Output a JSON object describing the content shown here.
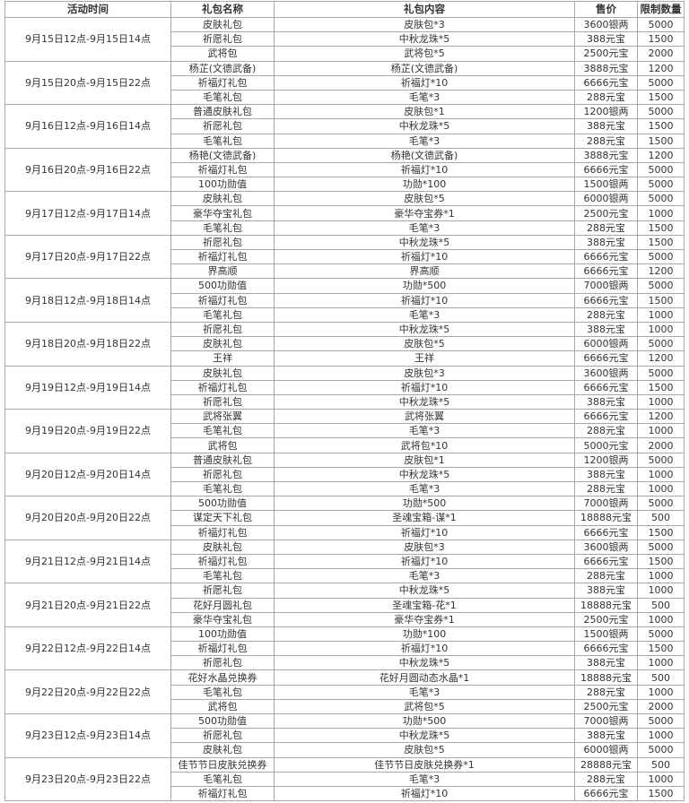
{
  "headers": [
    "活动时间",
    "礼包名称",
    "礼包内容",
    "售价",
    "限制数量"
  ],
  "groups": [
    {
      "time": "9月15日12点-9月15日14点",
      "rows": [
        [
          "皮肤礼包",
          "皮肤包*3",
          "3600银两",
          "5000"
        ],
        [
          "祈愿礼包",
          "中秋龙珠*5",
          "388元宝",
          "1500"
        ],
        [
          "武将包",
          "武将包*5",
          "2500元宝",
          "2000"
        ]
      ]
    },
    {
      "time": "9月15日20点-9月15日22点",
      "rows": [
        [
          "杨芷(文德武备)",
          "杨芷(文德武备)",
          "3888元宝",
          "1200"
        ],
        [
          "祈福灯礼包",
          "祈福灯*10",
          "6666元宝",
          "5000"
        ],
        [
          "毛笔礼包",
          "毛笔*3",
          "288元宝",
          "1500"
        ]
      ]
    },
    {
      "time": "9月16日12点-9月16日14点",
      "rows": [
        [
          "普通皮肤礼包",
          "皮肤包*1",
          "1200银两",
          "5000"
        ],
        [
          "祈愿礼包",
          "中秋龙珠*5",
          "388元宝",
          "1500"
        ],
        [
          "毛笔礼包",
          "毛笔*3",
          "288元宝",
          "1500"
        ]
      ]
    },
    {
      "time": "9月16日20点-9月16日22点",
      "rows": [
        [
          "杨艳(文德武备)",
          "杨艳(文德武备)",
          "3888元宝",
          "1200"
        ],
        [
          "祈福灯礼包",
          "祈福灯*10",
          "6666元宝",
          "5000"
        ],
        [
          "100功勋值",
          "功勋*100",
          "1500银两",
          "5000"
        ]
      ]
    },
    {
      "time": "9月17日12点-9月17日14点",
      "rows": [
        [
          "皮肤礼包",
          "皮肤包*5",
          "6000银两",
          "5000"
        ],
        [
          "豪华夺宝礼包",
          "豪华夺宝券*1",
          "2500元宝",
          "1000"
        ],
        [
          "毛笔礼包",
          "毛笔*3",
          "288元宝",
          "1500"
        ]
      ]
    },
    {
      "time": "9月17日20点-9月17日22点",
      "rows": [
        [
          "祈愿礼包",
          "中秋龙珠*5",
          "388元宝",
          "1500"
        ],
        [
          "祈福灯礼包",
          "祈福灯*10",
          "6666元宝",
          "5000"
        ],
        [
          "界高顺",
          "界高顺",
          "6666元宝",
          "1200"
        ]
      ]
    },
    {
      "time": "9月18日12点-9月18日14点",
      "rows": [
        [
          "500功勋值",
          "功勋*500",
          "7000银两",
          "5000"
        ],
        [
          "祈福灯礼包",
          "祈福灯*10",
          "6666元宝",
          "1500"
        ],
        [
          "毛笔礼包",
          "毛笔*3",
          "288元宝",
          "1000"
        ]
      ]
    },
    {
      "time": "9月18日20点-9月18日22点",
      "rows": [
        [
          "祈愿礼包",
          "中秋龙珠*5",
          "388元宝",
          "1000"
        ],
        [
          "皮肤礼包",
          "皮肤包*5",
          "6000银两",
          "5000"
        ],
        [
          "王祥",
          "王祥",
          "6666元宝",
          "1200"
        ]
      ]
    },
    {
      "time": "9月19日12点-9月19日14点",
      "rows": [
        [
          "皮肤礼包",
          "皮肤包*3",
          "3600银两",
          "5000"
        ],
        [
          "祈福灯礼包",
          "祈福灯*10",
          "6666元宝",
          "1500"
        ],
        [
          "祈愿礼包",
          "中秋龙珠*5",
          "388元宝",
          "1000"
        ]
      ]
    },
    {
      "time": "9月19日20点-9月19日22点",
      "rows": [
        [
          "武将张翼",
          "武将张翼",
          "6666元宝",
          "1200"
        ],
        [
          "毛笔礼包",
          "毛笔*3",
          "288元宝",
          "1000"
        ],
        [
          "武将包",
          "武将包*10",
          "5000元宝",
          "2000"
        ]
      ]
    },
    {
      "time": "9月20日12点-9月20日14点",
      "rows": [
        [
          "普通皮肤礼包",
          "皮肤包*1",
          "1200银两",
          "5000"
        ],
        [
          "祈愿礼包",
          "中秋龙珠*5",
          "388元宝",
          "1000"
        ],
        [
          "毛笔礼包",
          "毛笔*3",
          "288元宝",
          "1000"
        ]
      ]
    },
    {
      "time": "9月20日20点-9月20日22点",
      "rows": [
        [
          "500功勋值",
          "功勋*500",
          "7000银两",
          "5000"
        ],
        [
          "谋定天下礼包",
          "圣魂宝箱-谋*1",
          "18888元宝",
          "500"
        ],
        [
          "祈福灯礼包",
          "祈福灯*10",
          "6666元宝",
          "1500"
        ]
      ]
    },
    {
      "time": "9月21日12点-9月21日14点",
      "rows": [
        [
          "皮肤礼包",
          "皮肤包*3",
          "3600银两",
          "5000"
        ],
        [
          "祈福灯礼包",
          "祈福灯*10",
          "6666元宝",
          "1500"
        ],
        [
          "毛笔礼包",
          "毛笔*3",
          "288元宝",
          "1000"
        ]
      ]
    },
    {
      "time": "9月21日20点-9月21日22点",
      "rows": [
        [
          "祈愿礼包",
          "中秋龙珠*5",
          "388元宝",
          "1000"
        ],
        [
          "花好月圆礼包",
          "圣魂宝箱-花*1",
          "18888元宝",
          "500"
        ],
        [
          "豪华夺宝礼包",
          "豪华夺宝券*1",
          "2500元宝",
          "1000"
        ]
      ]
    },
    {
      "time": "9月22日12点-9月22日14点",
      "rows": [
        [
          "100功勋值",
          "功勋*100",
          "1500银两",
          "5000"
        ],
        [
          "祈福灯礼包",
          "祈福灯*10",
          "6666元宝",
          "1500"
        ],
        [
          "祈愿礼包",
          "中秋龙珠*5",
          "388元宝",
          "1000"
        ]
      ]
    },
    {
      "time": "9月22日20点-9月22日22点",
      "rows": [
        [
          "花好水晶兑换券",
          "花好月圆动态水晶*1",
          "18888元宝",
          "500"
        ],
        [
          "毛笔礼包",
          "毛笔*3",
          "288元宝",
          "1000"
        ],
        [
          "武将包",
          "武将包*5",
          "2500元宝",
          "2000"
        ]
      ]
    },
    {
      "time": "9月23日12点-9月23日14点",
      "rows": [
        [
          "500功勋值",
          "功勋*500",
          "7000银两",
          "5000"
        ],
        [
          "祈愿礼包",
          "中秋龙珠*5",
          "388元宝",
          "1000"
        ],
        [
          "皮肤礼包",
          "皮肤包*5",
          "6000银两",
          "5000"
        ]
      ]
    },
    {
      "time": "9月23日20点-9月23日22点",
      "rows": [
        [
          "佳节节日皮肤兑换券",
          "佳节节日皮肤兑换券*1",
          "28888元宝",
          "500"
        ],
        [
          "毛笔礼包",
          "毛笔*3",
          "288元宝",
          "1000"
        ],
        [
          "祈福灯礼包",
          "祈福灯*10",
          "6666元宝",
          "1500"
        ]
      ]
    }
  ]
}
